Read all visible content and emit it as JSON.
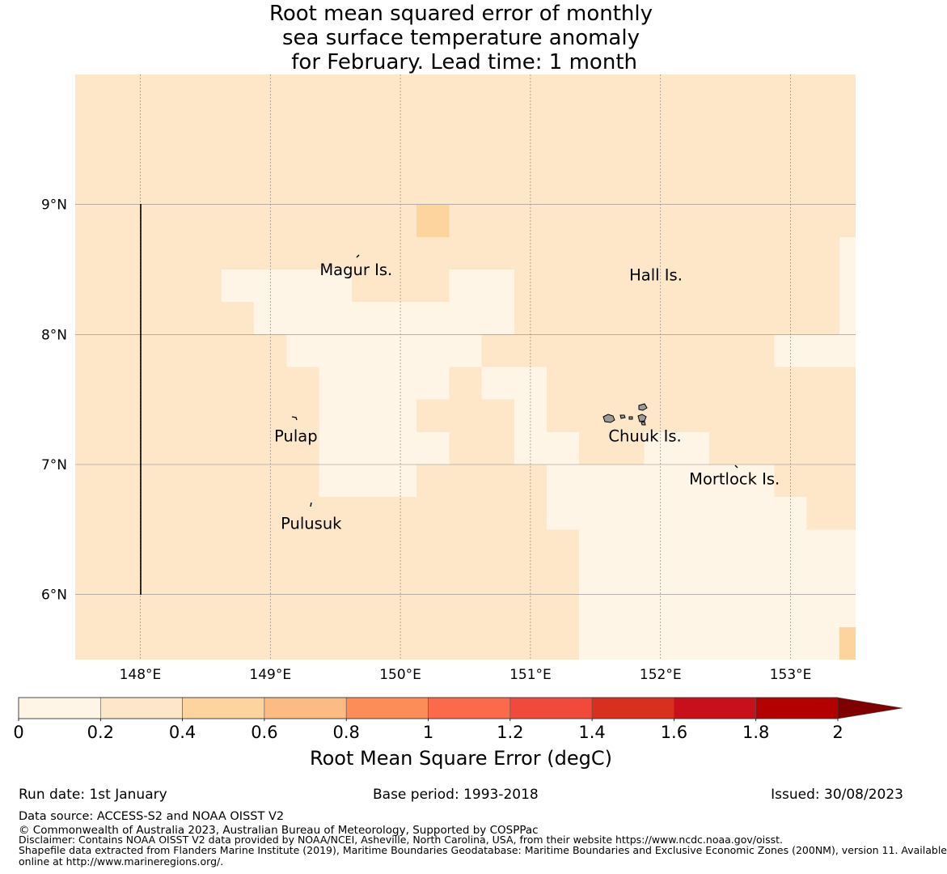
{
  "title": {
    "line1": "Root mean squared error of monthly",
    "line2": "sea surface temperature anomaly",
    "line3": " for February. Lead time: 1 month"
  },
  "colors": {
    "c1": "#fff5e6",
    "c2": "#fee7c9",
    "c3": "#fdd49e"
  },
  "map": {
    "lon_range": [
      147.5,
      153.5
    ],
    "lat_range": [
      5.5,
      10.0
    ],
    "lon_ticks": [
      148,
      149,
      150,
      151,
      152,
      153
    ],
    "lat_ticks": [
      6,
      7,
      8,
      9
    ],
    "lon_tick_labels": [
      "148°E",
      "149°E",
      "150°E",
      "151°E",
      "152°E",
      "153°E"
    ],
    "lat_tick_labels": [
      "6°N",
      "7°N",
      "8°N",
      "9°N"
    ],
    "places": [
      {
        "name": "Magur Is.",
        "lon": 149.38,
        "lat": 8.5
      },
      {
        "name": "Hall Is.",
        "lon": 151.76,
        "lat": 8.46
      },
      {
        "name": "Pulap",
        "lon": 149.03,
        "lat": 7.22
      },
      {
        "name": "Chuuk Is.",
        "lon": 151.6,
        "lat": 7.22
      },
      {
        "name": "Mortlock Is.",
        "lon": 152.22,
        "lat": 6.89
      },
      {
        "name": "Pulusuk",
        "lon": 149.08,
        "lat": 6.55
      }
    ],
    "light_cells": [
      [
        148.625,
        8.25,
        148.875,
        8.5
      ],
      [
        148.875,
        8.0,
        149.625,
        8.5
      ],
      [
        149.625,
        8.0,
        150.375,
        8.25
      ],
      [
        150.375,
        8.0,
        150.875,
        8.5
      ],
      [
        149.125,
        7.75,
        150.625,
        8.0
      ],
      [
        149.375,
        7.5,
        150.375,
        7.75
      ],
      [
        149.375,
        7.0,
        150.125,
        7.5
      ],
      [
        150.125,
        7.0,
        150.375,
        7.25
      ],
      [
        149.375,
        6.75,
        150.125,
        7.0
      ],
      [
        150.625,
        7.5,
        151.125,
        7.75
      ],
      [
        150.875,
        7.0,
        151.125,
        7.5
      ],
      [
        151.125,
        7.0,
        151.375,
        7.25
      ],
      [
        151.875,
        7.0,
        152.375,
        7.25
      ],
      [
        151.125,
        6.5,
        152.875,
        7.0
      ],
      [
        152.875,
        6.5,
        153.125,
        6.75
      ],
      [
        151.375,
        6.25,
        153.5,
        6.5
      ],
      [
        151.375,
        5.75,
        153.5,
        6.25
      ],
      [
        151.375,
        5.5,
        153.375,
        5.75
      ],
      [
        152.875,
        7.75,
        153.5,
        8.0
      ],
      [
        153.375,
        8.0,
        153.5,
        8.75
      ]
    ],
    "mid_cells": [
      [
        150.125,
        8.75,
        150.375,
        9.0
      ],
      [
        153.375,
        5.5,
        153.5,
        5.75
      ]
    ]
  },
  "colorbar": {
    "label": "Root Mean Square Error (degC)",
    "bounds": [
      0,
      0.2,
      0.4,
      0.6,
      0.8,
      1,
      1.2,
      1.4,
      1.6,
      1.8,
      2
    ],
    "tick_labels": [
      "0",
      "0.2",
      "0.4",
      "0.6",
      "0.8",
      "1",
      "1.2",
      "1.4",
      "1.6",
      "1.8",
      "2"
    ],
    "colors": [
      "#fff5e6",
      "#fee7c9",
      "#fdd49e",
      "#fdbb84",
      "#fc8d59",
      "#fb6a4a",
      "#ef4a3c",
      "#d7301f",
      "#c8101a",
      "#b30000"
    ],
    "extend_color": "#7f0000"
  },
  "footer": {
    "run_date": "Run date: 1st January",
    "base_period": "Base period: 1993-2018",
    "issued": "Issued: 30/08/2023",
    "data_source": "Data source: ACCESS-S2 and NOAA OISST V2",
    "copyright": "© Commonwealth of Australia 2023, Australian Bureau of Meteorology, Supported by COSPPac",
    "disclaimer": "Disclaimer: Contains NOAA OISST V2 data provided by NOAA/NCEI, Asheville, North Carolina, USA, from their website https://www.ncdc.noaa.gov/oisst.",
    "shapefile1": "Shapefile data extracted from Flanders Marine Institute (2019), Maritime Boundaries Geodatabase: Maritime Boundaries and Exclusive Economic Zones (200NM), version 11. Available",
    "shapefile2": "online at http://www.marineregions.org/."
  }
}
